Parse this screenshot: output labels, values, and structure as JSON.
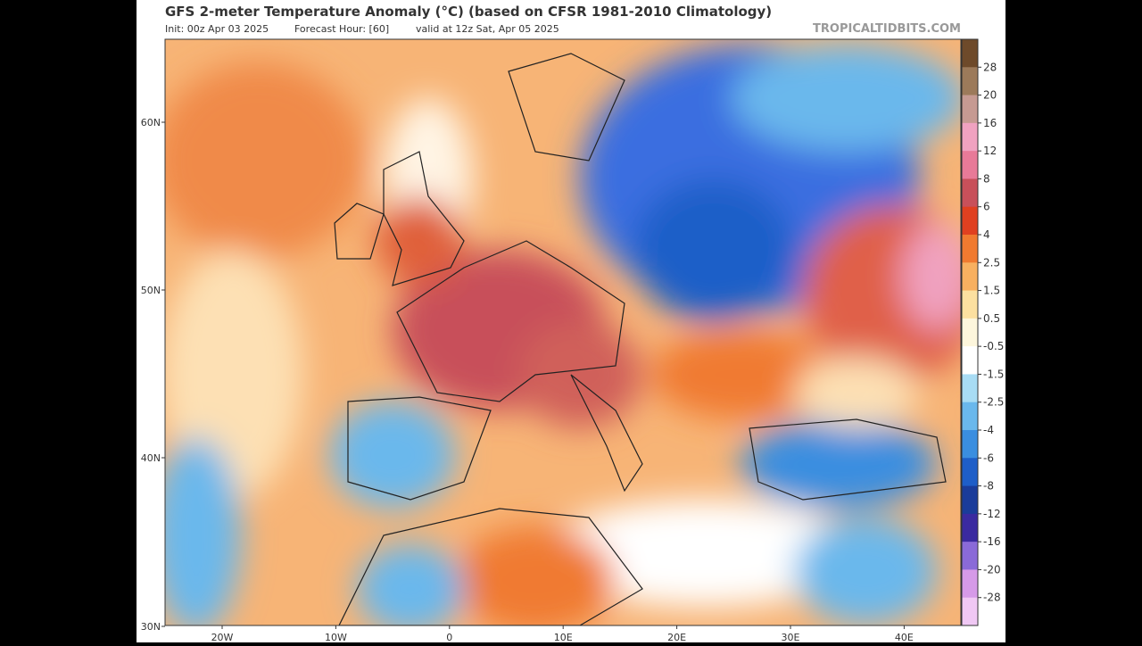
{
  "header": {
    "title": "GFS 2-meter Temperature Anomaly (°C) (based on CFSR 1981-2010 Climatology)",
    "init": "Init: 00z Apr 03 2025",
    "forecast_hour": "Forecast Hour: [60]",
    "valid": "valid at 12z Sat, Apr 05 2025",
    "watermark": "TROPICALTIDBITS.COM"
  },
  "map": {
    "lat_labels": [
      "60N",
      "50N",
      "40N",
      "30N"
    ],
    "lon_labels": [
      "20W",
      "10W",
      "0",
      "10E",
      "20E",
      "30E",
      "40E"
    ]
  },
  "colorbar": {
    "labels": [
      "28",
      "20",
      "16",
      "12",
      "8",
      "6",
      "4",
      "2.5",
      "1.5",
      "0.5",
      "-0.5",
      "-1.5",
      "-2.5",
      "-4",
      "-6",
      "-8",
      "-12",
      "-16",
      "-20",
      "-28"
    ],
    "colors": [
      "#6e4a2a",
      "#9c7a5a",
      "#c69a92",
      "#f0a2c0",
      "#e87a98",
      "#c8505a",
      "#e04020",
      "#f07a30",
      "#f8b060",
      "#fce0a0",
      "#fdf6dc",
      "#ffffff",
      "#a8dcf4",
      "#6ab8ec",
      "#3a8ee0",
      "#1e5ec8",
      "#1a3c9a",
      "#3a2aa0",
      "#8a6ad8",
      "#d69ae8",
      "#f0c8f4"
    ]
  }
}
